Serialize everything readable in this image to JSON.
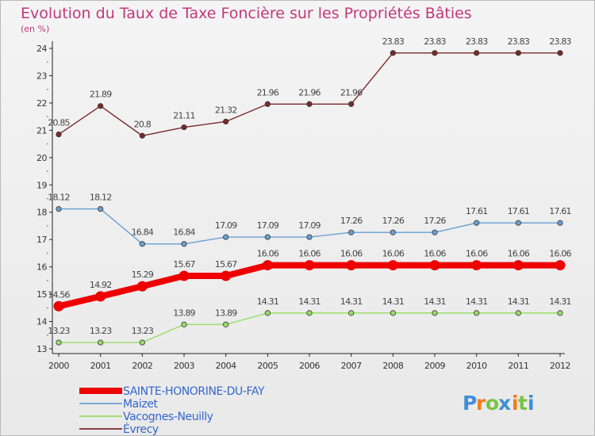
{
  "chart_data": {
    "type": "line",
    "title": "Evolution du Taux de Taxe Foncière sur les Propriétés Bâties",
    "subtitle": "(en %)",
    "xlabel": "",
    "ylabel": "(en %)",
    "x": [
      "2000",
      "2001",
      "2002",
      "2003",
      "2004",
      "2005",
      "2006",
      "2007",
      "2008",
      "2009",
      "2010",
      "2011",
      "2012"
    ],
    "ylim": [
      13,
      24
    ],
    "yticks": [
      "13",
      "14",
      "15",
      "16",
      "17",
      "18",
      "19",
      "20",
      "21",
      "22",
      "23",
      "24"
    ],
    "grid": false,
    "legend_position": "bottom-left",
    "series": [
      {
        "name": "SAINTE-HONORINE-DU-FAY",
        "color": "#ee0000",
        "values": [
          14.56,
          14.92,
          15.29,
          15.67,
          15.67,
          16.06,
          16.06,
          16.06,
          16.06,
          16.06,
          16.06,
          16.06,
          16.06
        ],
        "labels": [
          "14.56",
          "14.92",
          "15.29",
          "15.67",
          "15.67",
          "16.06",
          "16.06",
          "16.06",
          "16.06",
          "16.06",
          "16.06",
          "16.06",
          "16.06"
        ]
      },
      {
        "name": "Maizet",
        "color": "#6a9fd0",
        "values": [
          18.12,
          18.12,
          16.84,
          16.84,
          17.09,
          17.09,
          17.09,
          17.26,
          17.26,
          17.26,
          17.61,
          17.61,
          17.61
        ],
        "labels": [
          "18.12",
          "18.12",
          "16.84",
          "16.84",
          "17.09",
          "17.09",
          "17.09",
          "17.26",
          "17.26",
          "17.26",
          "17.61",
          "17.61",
          "17.61"
        ]
      },
      {
        "name": "Vacognes-Neuilly",
        "color": "#99dd66",
        "values": [
          13.23,
          13.23,
          13.23,
          13.89,
          13.89,
          14.31,
          14.31,
          14.31,
          14.31,
          14.31,
          14.31,
          14.31,
          14.31
        ],
        "labels": [
          "13.23",
          "13.23",
          "13.23",
          "13.89",
          "13.89",
          "14.31",
          "14.31",
          "14.31",
          "14.31",
          "14.31",
          "14.31",
          "14.31",
          "14.31"
        ]
      },
      {
        "name": "Évrecy",
        "color": "#7a2a2a",
        "values": [
          20.85,
          21.89,
          20.8,
          21.11,
          21.32,
          21.96,
          21.96,
          21.96,
          23.83,
          23.83,
          23.83,
          23.83,
          23.83
        ],
        "labels": [
          "20.85",
          "21.89",
          "20.8",
          "21.11",
          "21.32",
          "21.96",
          "21.96",
          "21.96",
          "23.83",
          "23.83",
          "23.83",
          "23.83",
          "23.83"
        ]
      }
    ]
  },
  "logo": {
    "letters": [
      "P",
      "r",
      "o",
      "x",
      "i",
      "t",
      "i"
    ],
    "colors": [
      "#3f8fd8",
      "#f07d1a",
      "#7cc243",
      "#3f8fd8",
      "#f07d1a",
      "#7cc243",
      "#3f8fd8"
    ]
  }
}
